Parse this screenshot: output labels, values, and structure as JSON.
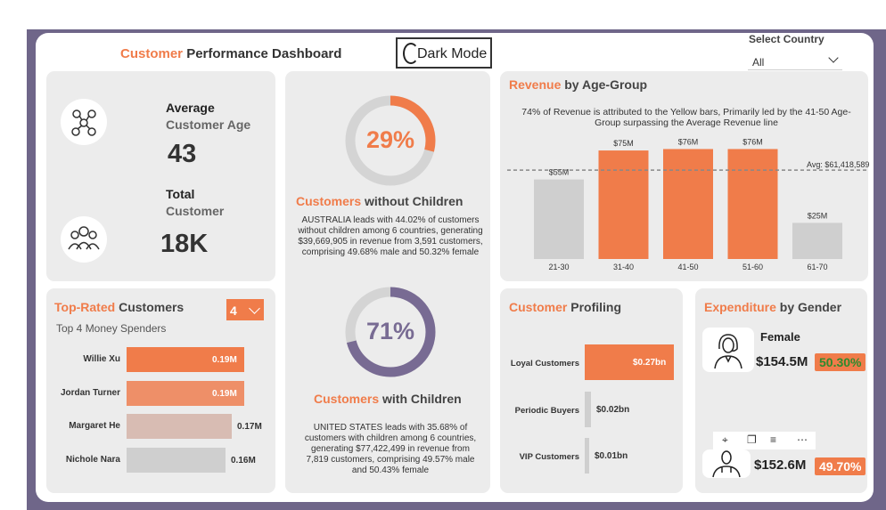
{
  "header": {
    "title_orange": "Customer",
    "title_rest": "Performance Dashboard",
    "dark_mode_label": "Dark Mode",
    "select_country_label": "Select Country",
    "select_country_value": "All"
  },
  "kpi": {
    "avg_age_label_1": "Average",
    "avg_age_label_2": "Customer Age",
    "avg_age_value": "43",
    "total_label_1": "Total",
    "total_label_2": "Customer",
    "total_value": "18K"
  },
  "donut_without": {
    "percent_label": "29%",
    "percent": 29,
    "title_orange": "Customers",
    "title_rest": "without Children",
    "description": "AUSTRALIA leads with 44.02% of customers without children among 6 countries, generating $39,669,905 in revenue from 3,591 customers, comprising 49.68% male and 50.32% female"
  },
  "donut_with": {
    "percent_label": "71%",
    "percent": 71,
    "title_orange": "Customers",
    "title_rest": "with Children",
    "description": "UNITED STATES leads with 35.68% of customers with children among 6 countries, generating $77,422,499 in revenue from 7,819 customers, comprising 49.57% male and 50.43% female"
  },
  "top_rated": {
    "title_orange": "Top-Rated",
    "title_rest": "Customers",
    "subtitle": "Top 4 Money Spenders",
    "selector_value": "4"
  },
  "revenue_age": {
    "title_orange": "Revenue",
    "title_rest": "by Age-Group",
    "subtitle": "74% of Revenue is attributed to the Yellow bars, Primarily led by the 41-50 Age-Group surpassing the Average Revenue line",
    "avg_label": "Avg: $61,418,589"
  },
  "profiling": {
    "title_orange": "Customer",
    "title_rest": "Profiling"
  },
  "gender": {
    "title_orange": "Expenditure",
    "title_rest": "by Gender",
    "female_label": "Female",
    "female_value": "$154.5M",
    "female_pct": "50.30%",
    "male_value": "$152.6M",
    "male_pct": "49.70%"
  },
  "colors": {
    "accent": "#f07c4a",
    "accent_light": "#ee8f68",
    "muted_pink": "#d8bcb3",
    "gray_bar": "#cfcfcf",
    "frame": "#6f6689",
    "donut_purple": "#786b93",
    "green_badge": "#44a94c"
  },
  "icons": [
    "network-people-icon",
    "group-people-icon",
    "moon-icon",
    "chevron-down-icon",
    "woman-avatar-icon",
    "man-avatar-icon",
    "pin-icon",
    "copy-icon",
    "filter-icon",
    "more-icon"
  ],
  "chart_data": [
    {
      "type": "bar",
      "orientation": "horizontal",
      "title": "Top 4 Money Spenders",
      "categories": [
        "Willie Xu",
        "Jordan Turner",
        "Margaret He",
        "Nichole Nara"
      ],
      "values": [
        0.19,
        0.19,
        0.17,
        0.16
      ],
      "value_labels": [
        "0.19M",
        "0.19M",
        "0.17M",
        "0.16M"
      ],
      "unit": "M"
    },
    {
      "type": "bar",
      "title": "Revenue by Age-Group",
      "categories": [
        "21-30",
        "31-40",
        "41-50",
        "51-60",
        "61-70"
      ],
      "values": [
        55,
        75,
        76,
        76,
        25
      ],
      "value_labels": [
        "$55M",
        "$75M",
        "$76M",
        "$76M",
        "$25M"
      ],
      "average": 61.418589,
      "ylim": [
        0,
        80
      ],
      "highlighted": [
        "31-40",
        "41-50",
        "51-60"
      ]
    },
    {
      "type": "bar",
      "orientation": "horizontal",
      "title": "Customer Profiling",
      "categories": [
        "Loyal Customers",
        "Periodic Buyers",
        "VIP Customers"
      ],
      "values": [
        0.27,
        0.02,
        0.01
      ],
      "value_labels": [
        "$0.27bn",
        "$0.02bn",
        "$0.01bn"
      ]
    },
    {
      "type": "pie",
      "title": "Customers without Children",
      "values": [
        29,
        71
      ]
    },
    {
      "type": "pie",
      "title": "Customers with Children",
      "values": [
        71,
        29
      ]
    }
  ]
}
